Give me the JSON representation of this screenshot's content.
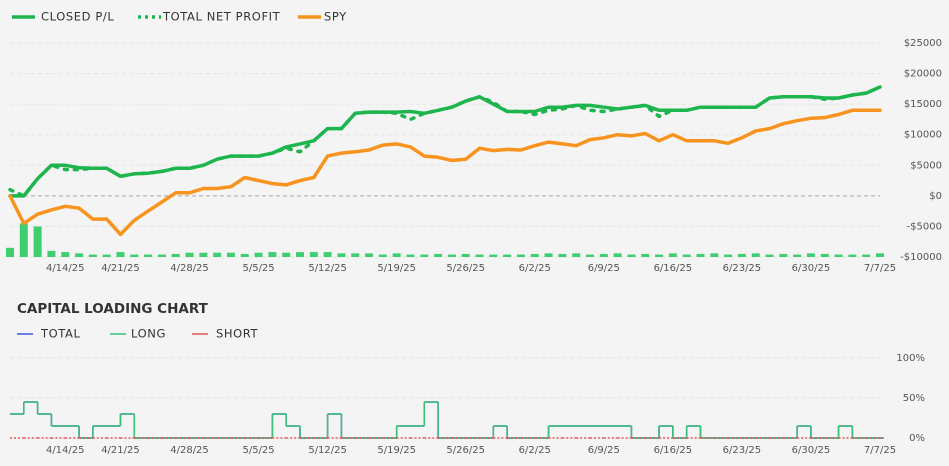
{
  "chart_data": [
    {
      "type": "line",
      "categories": [
        null,
        null,
        null,
        null,
        "4/14/25",
        null,
        null,
        null,
        "4/21/25",
        null,
        null,
        null,
        null,
        "4/28/25",
        null,
        null,
        null,
        null,
        "5/5/25",
        null,
        null,
        null,
        null,
        "5/12/25",
        null,
        null,
        null,
        null,
        "5/19/25",
        null,
        null,
        null,
        null,
        "5/26/25",
        null,
        null,
        null,
        null,
        "6/2/25",
        null,
        null,
        null,
        null,
        "6/9/25",
        null,
        null,
        null,
        null,
        "6/16/25",
        null,
        null,
        null,
        null,
        "6/23/25",
        null,
        null,
        null,
        null,
        "6/30/25",
        null,
        null,
        null,
        null,
        "7/7/25"
      ],
      "series": [
        {
          "name": "CLOSED P/L",
          "color": "#1fb54e",
          "dash": "solid",
          "values": [
            0,
            0,
            2800,
            5000,
            5000,
            4600,
            4500,
            4500,
            3200,
            3600,
            3700,
            4000,
            4500,
            4500,
            5000,
            6000,
            6500,
            6500,
            6500,
            7000,
            8000,
            8500,
            9000,
            11000,
            11000,
            13500,
            13700,
            13700,
            13700,
            13800,
            13500,
            14000,
            14500,
            15500,
            16200,
            15000,
            13800,
            13800,
            13800,
            14500,
            14500,
            14800,
            14800,
            14500,
            14200,
            14500,
            14800,
            14000,
            14000,
            14000,
            14500,
            14500,
            14500,
            14500,
            14500,
            16000,
            16200,
            16200,
            16200,
            16000,
            16000,
            16500,
            16800,
            17800
          ]
        },
        {
          "name": "TOTAL NET PROFIT",
          "color": "#1fb54e",
          "dash": "dotted",
          "values": [
            1000,
            0,
            2800,
            5000,
            4300,
            4300,
            4500,
            4500,
            3200,
            3600,
            3700,
            4000,
            4500,
            4500,
            5000,
            6000,
            6500,
            6500,
            6500,
            7000,
            7800,
            7200,
            9000,
            11000,
            11000,
            13500,
            13700,
            13700,
            13500,
            12500,
            13500,
            14000,
            14500,
            15500,
            16200,
            15300,
            13800,
            13800,
            13300,
            14000,
            14200,
            14800,
            14000,
            13800,
            14200,
            14500,
            14800,
            13000,
            14000,
            14000,
            14500,
            14500,
            14500,
            14500,
            14500,
            16000,
            16200,
            16200,
            16200,
            15800,
            16000,
            16500,
            16800,
            17800
          ]
        },
        {
          "name": "SPY",
          "color": "#f7931e",
          "dash": "solid",
          "values": [
            0,
            -4500,
            -3000,
            -2300,
            -1700,
            -2000,
            -3800,
            -3800,
            -6300,
            -4000,
            -2500,
            -1000,
            500,
            500,
            1200,
            1200,
            1500,
            3000,
            2500,
            2000,
            1800,
            2500,
            3000,
            6500,
            7000,
            7200,
            7500,
            8300,
            8500,
            8000,
            6500,
            6300,
            5800,
            6000,
            7800,
            7400,
            7600,
            7500,
            8200,
            8800,
            8500,
            8200,
            9200,
            9500,
            10000,
            9800,
            10200,
            9000,
            10000,
            9000,
            9000,
            9000,
            8600,
            9500,
            10600,
            11000,
            11800,
            12300,
            12700,
            12800,
            13300,
            14000,
            14000,
            14000
          ]
        }
      ],
      "bar_series": {
        "color": "#3fcf70",
        "values": [
          -8500,
          -4500,
          -5000,
          -9000,
          -9200,
          -9400,
          -9600,
          -9600,
          -9200,
          -9600,
          -9600,
          -9600,
          -9500,
          -9300,
          -9300,
          -9300,
          -9300,
          -9500,
          -9300,
          -9200,
          -9300,
          -9200,
          -9200,
          -9200,
          -9400,
          -9400,
          -9400,
          -9600,
          -9400,
          -9600,
          -9600,
          -9500,
          -9600,
          -9500,
          -9600,
          -9600,
          -9600,
          -9600,
          -9500,
          -9400,
          -9500,
          -9400,
          -9600,
          -9500,
          -9400,
          -9600,
          -9500,
          -9600,
          -9400,
          -9600,
          -9500,
          -9400,
          -9600,
          -9500,
          -9400,
          -9600,
          -9500,
          -9600,
          -9400,
          -9500,
          -9600,
          -9600,
          -9600,
          -9400
        ]
      },
      "ylim": [
        -10000,
        25000
      ],
      "yticks": [
        {
          "value": 25000,
          "label": "$25000"
        },
        {
          "value": 20000,
          "label": "$20000"
        },
        {
          "value": 15000,
          "label": "$15000"
        },
        {
          "value": 10000,
          "label": "$10000"
        },
        {
          "value": 5000,
          "label": "$5000"
        },
        {
          "value": 0,
          "label": "$0"
        },
        {
          "value": -5000,
          "label": "-$5000"
        },
        {
          "value": -10000,
          "label": "-$10000"
        }
      ],
      "grid": true
    },
    {
      "type": "step",
      "title": "CAPITAL LOADING CHART",
      "categories": [
        null,
        null,
        null,
        null,
        "4/14/25",
        null,
        null,
        null,
        "4/21/25",
        null,
        null,
        null,
        null,
        "4/28/25",
        null,
        null,
        null,
        null,
        "5/5/25",
        null,
        null,
        null,
        null,
        "5/12/25",
        null,
        null,
        null,
        null,
        "5/19/25",
        null,
        null,
        null,
        null,
        "5/26/25",
        null,
        null,
        null,
        null,
        "6/2/25",
        null,
        null,
        null,
        null,
        "6/9/25",
        null,
        null,
        null,
        null,
        "6/16/25",
        null,
        null,
        null,
        null,
        "6/23/25",
        null,
        null,
        null,
        null,
        "6/30/25",
        null,
        null,
        null,
        null,
        "7/7/25"
      ],
      "series": [
        {
          "name": "TOTAL",
          "color": "#3a5bd6",
          "dash": "solid",
          "values": [
            30,
            45,
            30,
            15,
            15,
            0,
            15,
            15,
            30,
            0,
            0,
            0,
            0,
            0,
            0,
            0,
            0,
            0,
            0,
            30,
            15,
            0,
            0,
            30,
            0,
            0,
            0,
            0,
            15,
            15,
            45,
            0,
            0,
            0,
            0,
            15,
            0,
            0,
            0,
            15,
            15,
            15,
            15,
            15,
            15,
            0,
            0,
            15,
            0,
            15,
            0,
            0,
            0,
            0,
            0,
            0,
            0,
            15,
            0,
            0,
            15,
            0,
            0,
            0
          ]
        },
        {
          "name": "LONG",
          "color": "#3cbf78",
          "dash": "solid",
          "values": [
            30,
            45,
            30,
            15,
            15,
            0,
            15,
            15,
            30,
            0,
            0,
            0,
            0,
            0,
            0,
            0,
            0,
            0,
            0,
            30,
            15,
            0,
            0,
            30,
            0,
            0,
            0,
            0,
            15,
            15,
            45,
            0,
            0,
            0,
            0,
            15,
            0,
            0,
            0,
            15,
            15,
            15,
            15,
            15,
            15,
            0,
            0,
            15,
            0,
            15,
            0,
            0,
            0,
            0,
            0,
            0,
            0,
            15,
            0,
            0,
            15,
            0,
            0,
            0
          ]
        },
        {
          "name": "SHORT",
          "color": "#e0565b",
          "dash": "solid",
          "values": [
            0,
            0,
            0,
            0,
            0,
            0,
            0,
            0,
            0,
            0,
            0,
            0,
            0,
            0,
            0,
            0,
            0,
            0,
            0,
            0,
            0,
            0,
            0,
            0,
            0,
            0,
            0,
            0,
            0,
            0,
            0,
            0,
            0,
            0,
            0,
            0,
            0,
            0,
            0,
            0,
            0,
            0,
            0,
            0,
            0,
            0,
            0,
            0,
            0,
            0,
            0,
            0,
            0,
            0,
            0,
            0,
            0,
            0,
            0,
            0,
            0,
            0,
            0,
            0
          ]
        }
      ],
      "ylim": [
        0,
        100
      ],
      "yticks": [
        {
          "value": 0,
          "label": "0%"
        },
        {
          "value": 50,
          "label": "50%"
        },
        {
          "value": 100,
          "label": "100%"
        }
      ],
      "grid": true
    }
  ]
}
